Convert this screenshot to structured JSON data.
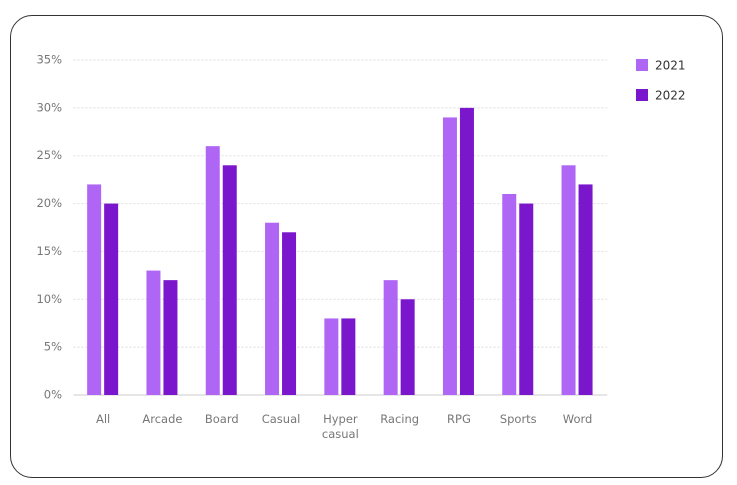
{
  "chart_data": {
    "type": "bar",
    "categories": [
      "All",
      "Arcade",
      "Board",
      "Casual",
      "Hyper casual",
      "Racing",
      "RPG",
      "Sports",
      "Word"
    ],
    "series": [
      {
        "name": "2021",
        "color": "#b066f5",
        "values": [
          22,
          13,
          26,
          18,
          8,
          12,
          29,
          21,
          24
        ]
      },
      {
        "name": "2022",
        "color": "#7a16cc",
        "values": [
          20,
          12,
          24,
          17,
          8,
          10,
          30,
          20,
          22
        ]
      }
    ],
    "ylim": [
      0,
      35
    ],
    "yticks": [
      {
        "value": 0,
        "label": "0%"
      },
      {
        "value": 5,
        "label": "5%"
      },
      {
        "value": 10,
        "label": "10%"
      },
      {
        "value": 15,
        "label": "15%"
      },
      {
        "value": 20,
        "label": "20%"
      },
      {
        "value": 25,
        "label": "25%"
      },
      {
        "value": 30,
        "label": "30%"
      },
      {
        "value": 35,
        "label": "35%"
      }
    ],
    "grid": true,
    "legend": "right"
  }
}
